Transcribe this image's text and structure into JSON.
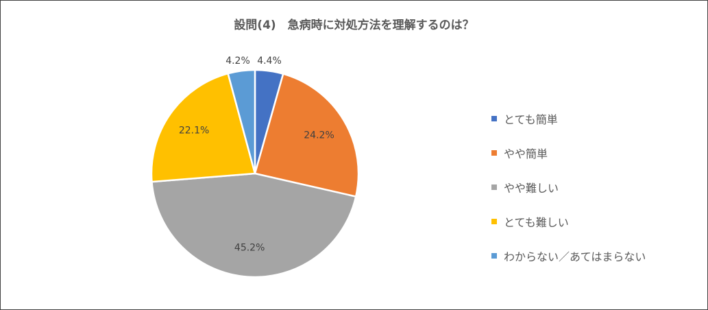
{
  "chart_data": {
    "type": "pie",
    "title": "設問(4)　急病時に対処方法を理解するのは？",
    "categories": [
      "とても簡単",
      "やや簡単",
      "やや難しい",
      "とても難しい",
      "わからない／あてはまらない"
    ],
    "values": [
      4.4,
      24.2,
      45.2,
      22.1,
      4.2
    ],
    "data_labels": [
      "4.4%",
      "24.2%",
      "45.2%",
      "22.1%",
      "4.2%"
    ],
    "colors": [
      "#4472C4",
      "#ED7D31",
      "#A5A5A5",
      "#FFC000",
      "#5B9BD5"
    ],
    "legend_position": "right",
    "start_angle": "12 o'clock",
    "direction": "clockwise"
  }
}
